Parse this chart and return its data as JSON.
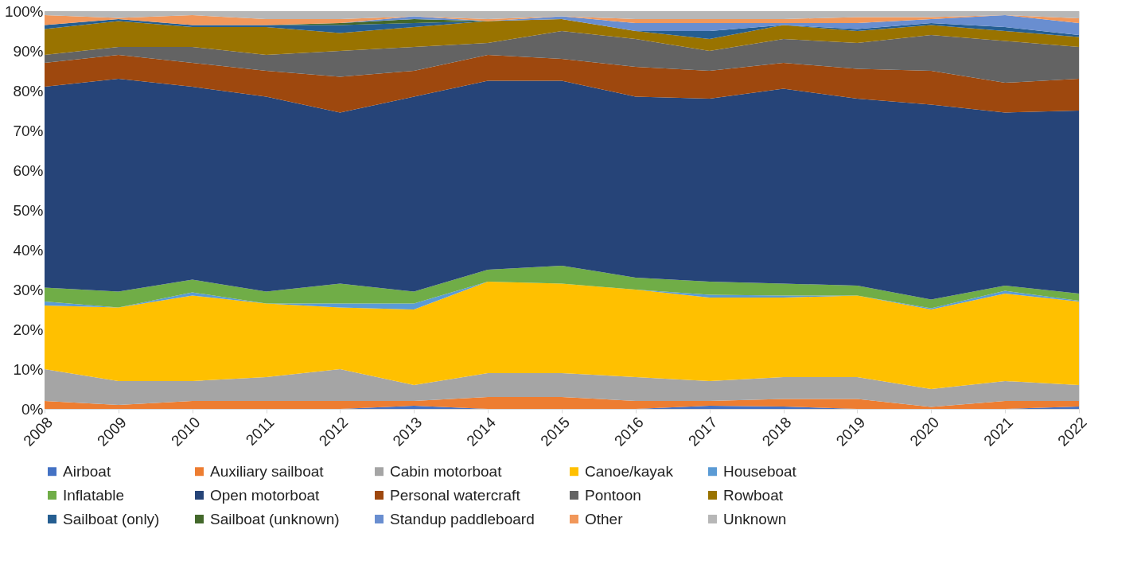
{
  "chart_data": {
    "type": "area",
    "stacked": true,
    "categories": [
      "2008",
      "2009",
      "2010",
      "2011",
      "2012",
      "2013",
      "2014",
      "2015",
      "2016",
      "2017",
      "2018",
      "2019",
      "2020",
      "2021",
      "2022"
    ],
    "ylim": [
      0,
      100
    ],
    "yticks": [
      {
        "value": 0,
        "label": "0%"
      },
      {
        "value": 10,
        "label": "10%"
      },
      {
        "value": 20,
        "label": "20%"
      },
      {
        "value": 30,
        "label": "30%"
      },
      {
        "value": 40,
        "label": "40%"
      },
      {
        "value": 50,
        "label": "50%"
      },
      {
        "value": 60,
        "label": "60%"
      },
      {
        "value": 70,
        "label": "70%"
      },
      {
        "value": 80,
        "label": "80%"
      },
      {
        "value": 90,
        "label": "90%"
      },
      {
        "value": 100,
        "label": "100%"
      }
    ],
    "grid": false,
    "legend": "bottom",
    "series": [
      {
        "name": "Airboat",
        "color": "#4472c4",
        "values": [
          0,
          0,
          0,
          0,
          0,
          0.8,
          0,
          0,
          0,
          0.8,
          0.6,
          0,
          0,
          0,
          0.6
        ]
      },
      {
        "name": "Auxiliary sailboat",
        "color": "#ed7d31",
        "values": [
          2,
          1,
          2,
          2,
          2,
          1.2,
          3,
          3,
          2,
          1.2,
          1.9,
          2.5,
          0.5,
          2,
          1.4
        ]
      },
      {
        "name": "Cabin motorboat",
        "color": "#a5a5a5",
        "values": [
          8,
          6,
          5,
          6,
          8,
          4,
          6,
          6,
          6,
          5,
          5.5,
          5.5,
          4.5,
          5,
          4
        ]
      },
      {
        "name": "Canoe/kayak",
        "color": "#ffc000",
        "values": [
          16,
          18.5,
          21.5,
          18.5,
          15.5,
          19,
          23,
          22.5,
          22,
          21,
          20,
          20.5,
          20,
          22,
          21
        ]
      },
      {
        "name": "Houseboat",
        "color": "#5b9bd5",
        "values": [
          1,
          0,
          0.8,
          0,
          1,
          1.5,
          0,
          0,
          0,
          0.7,
          0.5,
          0,
          0.3,
          0.7,
          0.2
        ]
      },
      {
        "name": "Inflatable",
        "color": "#70ad47",
        "values": [
          3.5,
          4,
          3.2,
          3,
          5,
          3,
          3,
          4.5,
          3,
          3.3,
          3,
          2.5,
          2.2,
          1.3,
          1.8
        ]
      },
      {
        "name": "Open motorboat",
        "color": "#264478",
        "values": [
          50.5,
          53.5,
          48.5,
          49,
          43,
          49,
          47.5,
          46.5,
          45.5,
          46,
          49,
          47,
          49,
          43.5,
          46
        ]
      },
      {
        "name": "Personal watercraft",
        "color": "#9e480e",
        "values": [
          6,
          6,
          6,
          6.5,
          9,
          6.5,
          6.5,
          5.5,
          7.5,
          7,
          6.5,
          7.5,
          8.5,
          7.5,
          8
        ]
      },
      {
        "name": "Pontoon",
        "color": "#636363",
        "values": [
          2,
          2,
          4,
          4,
          6.5,
          6,
          3,
          7,
          7,
          5,
          6,
          6.5,
          9,
          10.5,
          8
        ]
      },
      {
        "name": "Rowboat",
        "color": "#997300",
        "values": [
          6.5,
          6.5,
          5,
          7,
          4.5,
          5,
          5.5,
          3,
          2,
          3,
          3.5,
          3,
          2.5,
          2.5,
          2.5
        ]
      },
      {
        "name": "Sailboat (only)",
        "color": "#255e91",
        "values": [
          1,
          0.5,
          0.5,
          0.5,
          2,
          1,
          0,
          0,
          0,
          2,
          0,
          0.5,
          0.5,
          1,
          0.5
        ]
      },
      {
        "name": "Sailboat (unknown)",
        "color": "#43682b",
        "values": [
          0,
          0,
          0,
          0,
          0.5,
          1,
          0,
          0,
          0,
          0,
          0,
          0,
          0,
          0,
          0
        ]
      },
      {
        "name": "Standup paddleboard",
        "color": "#698ed0",
        "values": [
          0,
          0,
          0,
          0,
          0,
          0.7,
          0,
          0.7,
          2,
          2,
          0.5,
          1.5,
          1,
          3,
          3
        ]
      },
      {
        "name": "Other",
        "color": "#f1975a",
        "values": [
          2.5,
          0.3,
          2.5,
          1.5,
          1,
          0,
          0.5,
          0,
          1,
          1,
          1,
          1.5,
          0.5,
          0,
          1.2
        ]
      },
      {
        "name": "Unknown",
        "color": "#b7b7b7",
        "values": [
          1,
          1.7,
          1,
          2,
          2,
          1.3,
          2,
          1.3,
          2,
          2,
          2,
          1.5,
          1.5,
          1,
          1.8
        ]
      }
    ]
  }
}
